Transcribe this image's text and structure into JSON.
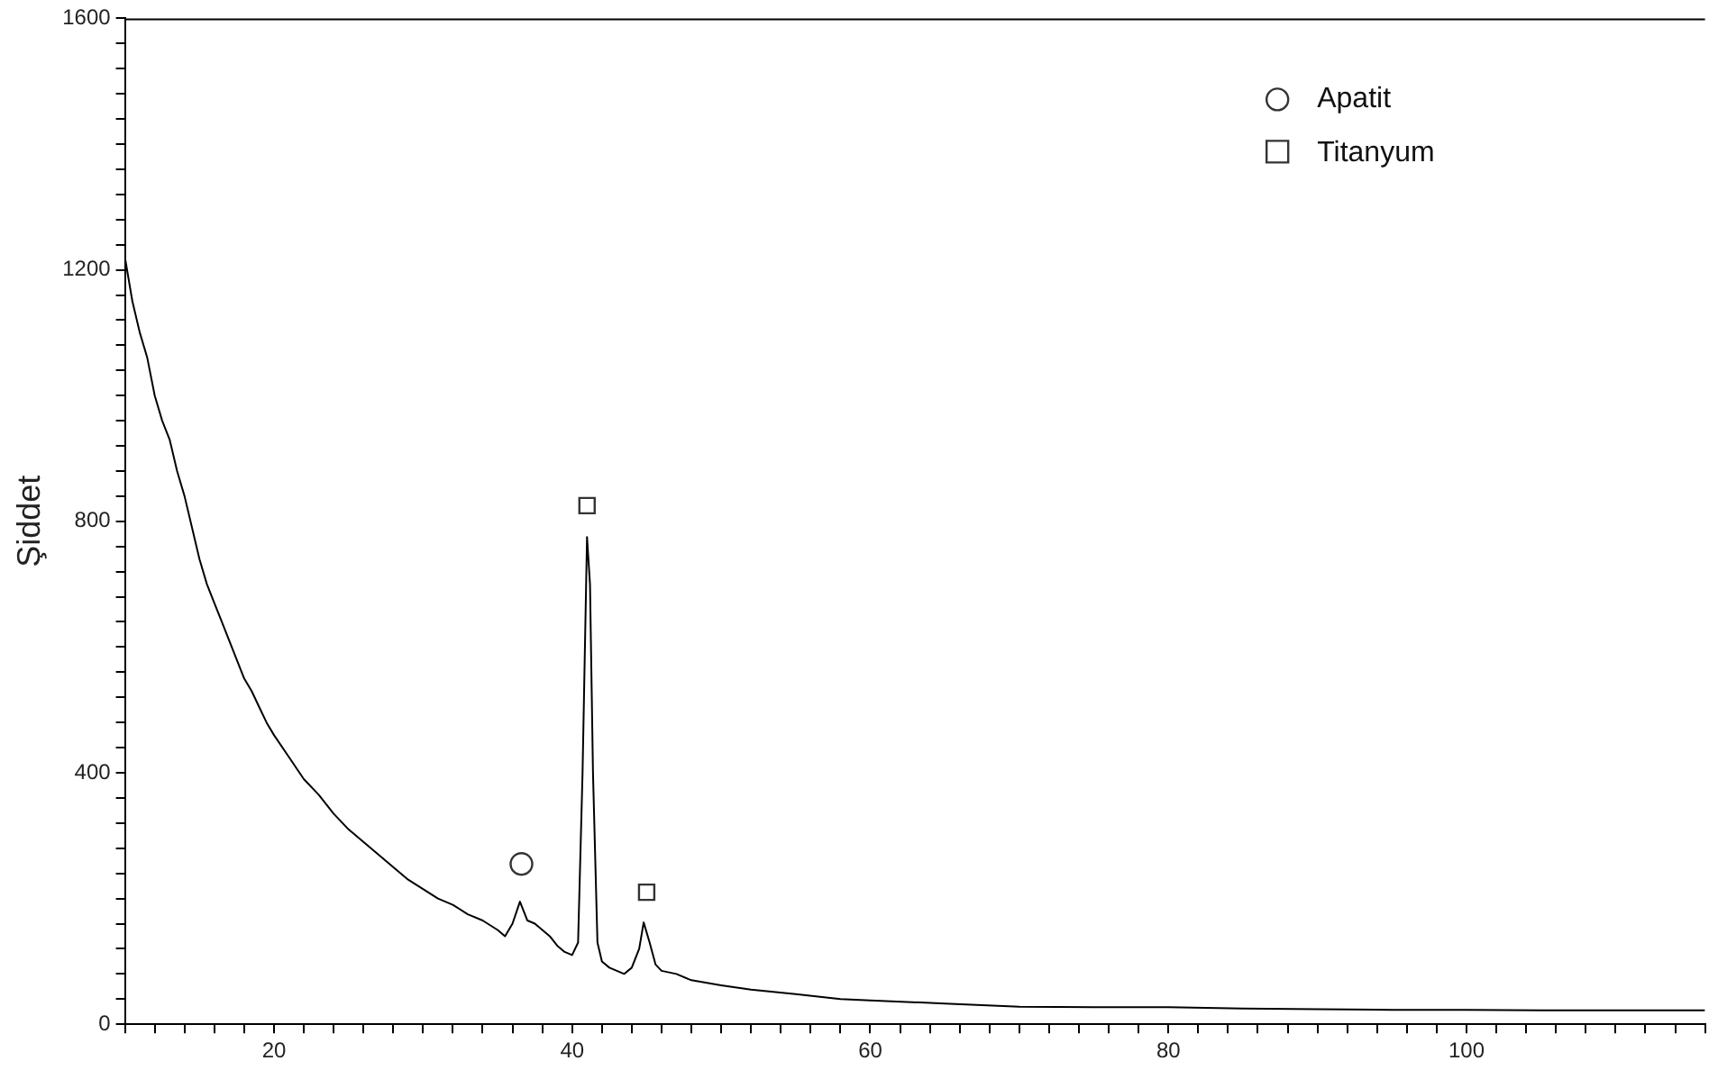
{
  "chart_data": {
    "type": "line",
    "ylabel": "Şiddet",
    "xlim": [
      10,
      116
    ],
    "ylim": [
      0,
      1600
    ],
    "xticks": [
      {
        "value": 10,
        "label": null
      },
      {
        "value": 12,
        "label": null
      },
      {
        "value": 14,
        "label": null
      },
      {
        "value": 16,
        "label": null
      },
      {
        "value": 18,
        "label": null
      },
      20,
      {
        "value": 22,
        "label": null
      },
      {
        "value": 24,
        "label": null
      },
      {
        "value": 26,
        "label": null
      },
      {
        "value": 28,
        "label": null
      },
      {
        "value": 30,
        "label": null
      },
      {
        "value": 32,
        "label": null
      },
      {
        "value": 34,
        "label": null
      },
      {
        "value": 36,
        "label": null
      },
      {
        "value": 38,
        "label": null
      },
      40,
      {
        "value": 42,
        "label": null
      },
      {
        "value": 44,
        "label": null
      },
      {
        "value": 46,
        "label": null
      },
      {
        "value": 48,
        "label": null
      },
      {
        "value": 50,
        "label": null
      },
      {
        "value": 52,
        "label": null
      },
      {
        "value": 54,
        "label": null
      },
      {
        "value": 56,
        "label": null
      },
      {
        "value": 58,
        "label": null
      },
      60,
      {
        "value": 62,
        "label": null
      },
      {
        "value": 64,
        "label": null
      },
      {
        "value": 66,
        "label": null
      },
      {
        "value": 68,
        "label": null
      },
      {
        "value": 70,
        "label": null
      },
      {
        "value": 72,
        "label": null
      },
      {
        "value": 74,
        "label": null
      },
      {
        "value": 76,
        "label": null
      },
      {
        "value": 78,
        "label": null
      },
      80,
      {
        "value": 82,
        "label": null
      },
      {
        "value": 84,
        "label": null
      },
      {
        "value": 86,
        "label": null
      },
      {
        "value": 88,
        "label": null
      },
      {
        "value": 90,
        "label": null
      },
      {
        "value": 92,
        "label": null
      },
      {
        "value": 94,
        "label": null
      },
      {
        "value": 96,
        "label": null
      },
      {
        "value": 98,
        "label": null
      },
      100,
      {
        "value": 102,
        "label": null
      },
      {
        "value": 104,
        "label": null
      },
      {
        "value": 106,
        "label": null
      },
      {
        "value": 108,
        "label": null
      },
      {
        "value": 110,
        "label": null
      },
      {
        "value": 112,
        "label": null
      },
      {
        "value": 114,
        "label": null
      },
      {
        "value": 116,
        "label": null
      }
    ],
    "yticks": [
      0,
      {
        "value": 40,
        "label": null
      },
      {
        "value": 80,
        "label": null
      },
      {
        "value": 120,
        "label": null
      },
      {
        "value": 160,
        "label": null
      },
      {
        "value": 200,
        "label": null
      },
      {
        "value": 240,
        "label": null
      },
      {
        "value": 280,
        "label": null
      },
      {
        "value": 320,
        "label": null
      },
      {
        "value": 360,
        "label": null
      },
      400,
      {
        "value": 440,
        "label": null
      },
      {
        "value": 480,
        "label": null
      },
      {
        "value": 520,
        "label": null
      },
      {
        "value": 560,
        "label": null
      },
      {
        "value": 600,
        "label": null
      },
      {
        "value": 640,
        "label": null
      },
      {
        "value": 680,
        "label": null
      },
      {
        "value": 720,
        "label": null
      },
      {
        "value": 760,
        "label": null
      },
      800,
      {
        "value": 840,
        "label": null
      },
      {
        "value": 880,
        "label": null
      },
      {
        "value": 920,
        "label": null
      },
      {
        "value": 960,
        "label": null
      },
      {
        "value": 1000,
        "label": null
      },
      {
        "value": 1040,
        "label": null
      },
      {
        "value": 1080,
        "label": null
      },
      {
        "value": 1120,
        "label": null
      },
      {
        "value": 1160,
        "label": null
      },
      1200,
      {
        "value": 1240,
        "label": null
      },
      {
        "value": 1280,
        "label": null
      },
      {
        "value": 1320,
        "label": null
      },
      {
        "value": 1360,
        "label": null
      },
      {
        "value": 1400,
        "label": null
      },
      {
        "value": 1440,
        "label": null
      },
      {
        "value": 1480,
        "label": null
      },
      {
        "value": 1520,
        "label": null
      },
      {
        "value": 1560,
        "label": null
      },
      1600
    ],
    "grid": false,
    "legend": "top right",
    "line_style": "solid",
    "series": [
      {
        "type": "line",
        "color": "#000000",
        "marker": "none",
        "x": [
          10,
          10.5,
          11,
          11.5,
          12,
          12.5,
          13,
          13.5,
          14,
          14.5,
          15,
          15.5,
          16,
          16.5,
          17,
          17.5,
          18,
          18.5,
          19,
          19.5,
          20,
          21,
          22,
          23,
          24,
          25,
          26,
          27,
          28,
          29,
          30,
          31,
          32,
          33,
          34,
          35,
          35.5,
          36,
          36.5,
          37,
          37.5,
          38,
          38.5,
          39,
          39.5,
          40,
          40.4,
          40.7,
          41,
          41.2,
          41.4,
          41.7,
          42,
          42.5,
          43,
          43.5,
          44,
          44.5,
          44.8,
          45.2,
          45.6,
          46,
          47,
          48,
          50,
          52,
          55,
          58,
          60,
          65,
          70,
          75,
          80,
          85,
          90,
          95,
          100,
          105,
          110,
          116
        ],
        "values": [
          1220,
          1150,
          1100,
          1060,
          1000,
          960,
          930,
          880,
          840,
          790,
          740,
          700,
          670,
          640,
          610,
          580,
          550,
          530,
          505,
          480,
          460,
          425,
          390,
          365,
          335,
          310,
          290,
          270,
          250,
          230,
          215,
          200,
          190,
          175,
          165,
          150,
          140,
          160,
          195,
          165,
          160,
          150,
          140,
          125,
          115,
          110,
          130,
          400,
          775,
          700,
          400,
          130,
          100,
          90,
          85,
          80,
          90,
          120,
          162,
          130,
          95,
          85,
          80,
          70,
          62,
          55,
          48,
          40,
          38,
          33,
          28,
          27,
          27,
          25,
          24,
          23,
          23,
          22,
          22,
          22
        ]
      },
      {
        "type": "scatter",
        "name": "Apatit",
        "color": "#333333",
        "marker": "circle",
        "x": [
          36.6
        ],
        "values": [
          255
        ]
      },
      {
        "type": "scatter",
        "name": "Titanyum",
        "color": "#333333",
        "marker": "square",
        "x": [
          41,
          45
        ],
        "values": [
          825,
          210
        ]
      }
    ]
  }
}
